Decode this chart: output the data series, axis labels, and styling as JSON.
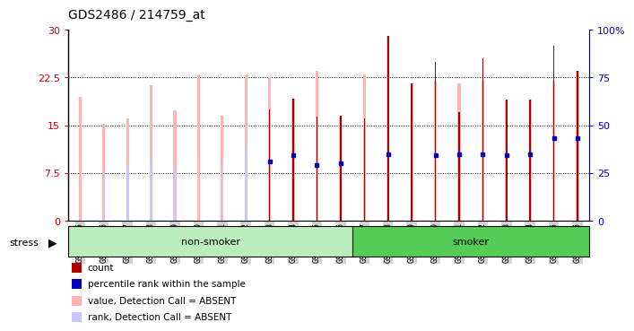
{
  "title": "GDS2486 / 214759_at",
  "samples": [
    "GSM101095",
    "GSM101096",
    "GSM101097",
    "GSM101098",
    "GSM101099",
    "GSM101100",
    "GSM101101",
    "GSM101102",
    "GSM101103",
    "GSM101104",
    "GSM101105",
    "GSM101106",
    "GSM101107",
    "GSM101108",
    "GSM101109",
    "GSM101110",
    "GSM101111",
    "GSM101112",
    "GSM101113",
    "GSM101114",
    "GSM101115",
    "GSM101116"
  ],
  "value_absent": [
    19.5,
    15.2,
    16.0,
    21.3,
    17.3,
    23.0,
    16.5,
    23.0,
    22.5,
    19.2,
    23.5,
    16.3,
    23.0,
    29.0,
    21.5,
    22.0,
    21.5,
    22.0,
    19.0,
    19.0,
    22.0,
    23.5
  ],
  "rank_absent_left": [
    9.5,
    7.8,
    8.5,
    9.7,
    8.5,
    10.5,
    9.5,
    11.5,
    null,
    10.3,
    null,
    null,
    11.0,
    11.5,
    11.0,
    11.0,
    null,
    11.0,
    null,
    null,
    13.5,
    null
  ],
  "count_vals": [
    null,
    null,
    null,
    null,
    null,
    null,
    null,
    null,
    17.5,
    19.2,
    16.3,
    16.5,
    16.0,
    29.0,
    21.5,
    25.0,
    17.0,
    25.5,
    19.0,
    19.0,
    27.5,
    23.5
  ],
  "pct_rank_left": [
    null,
    null,
    null,
    null,
    null,
    null,
    null,
    null,
    9.3,
    10.3,
    8.7,
    9.0,
    null,
    10.5,
    null,
    10.3,
    10.5,
    10.5,
    10.3,
    10.5,
    13.0,
    13.0
  ],
  "non_smoker_count": 12,
  "smoker_count": 10,
  "colors": {
    "count": "#aa0000",
    "pct_rank": "#0000bb",
    "value_absent": "#ffb3b3",
    "rank_absent": "#c8c8ff",
    "non_smoker_bg": "#bbeebb",
    "smoker_bg": "#55cc55",
    "tick_label_bg": "#d4d4d4",
    "left_axis": "#cc0000",
    "right_axis": "#0000cc",
    "grid": "black",
    "plot_bg": "white"
  },
  "ylim_left": [
    0,
    30
  ],
  "ylim_right": [
    0,
    100
  ],
  "yticks_left": [
    0,
    7.5,
    15,
    22.5,
    30
  ],
  "yticks_right": [
    0,
    25,
    50,
    75,
    100
  ],
  "ytick_labels_left": [
    "0",
    "7.5",
    "15",
    "22.5",
    "30"
  ],
  "ytick_labels_right": [
    "0",
    "25",
    "50",
    "75",
    "100%"
  ],
  "legend_items": [
    {
      "label": "count",
      "color": "#aa0000"
    },
    {
      "label": "percentile rank within the sample",
      "color": "#0000bb"
    },
    {
      "label": "value, Detection Call = ABSENT",
      "color": "#ffb3b3"
    },
    {
      "label": "rank, Detection Call = ABSENT",
      "color": "#c8c8ff"
    }
  ]
}
